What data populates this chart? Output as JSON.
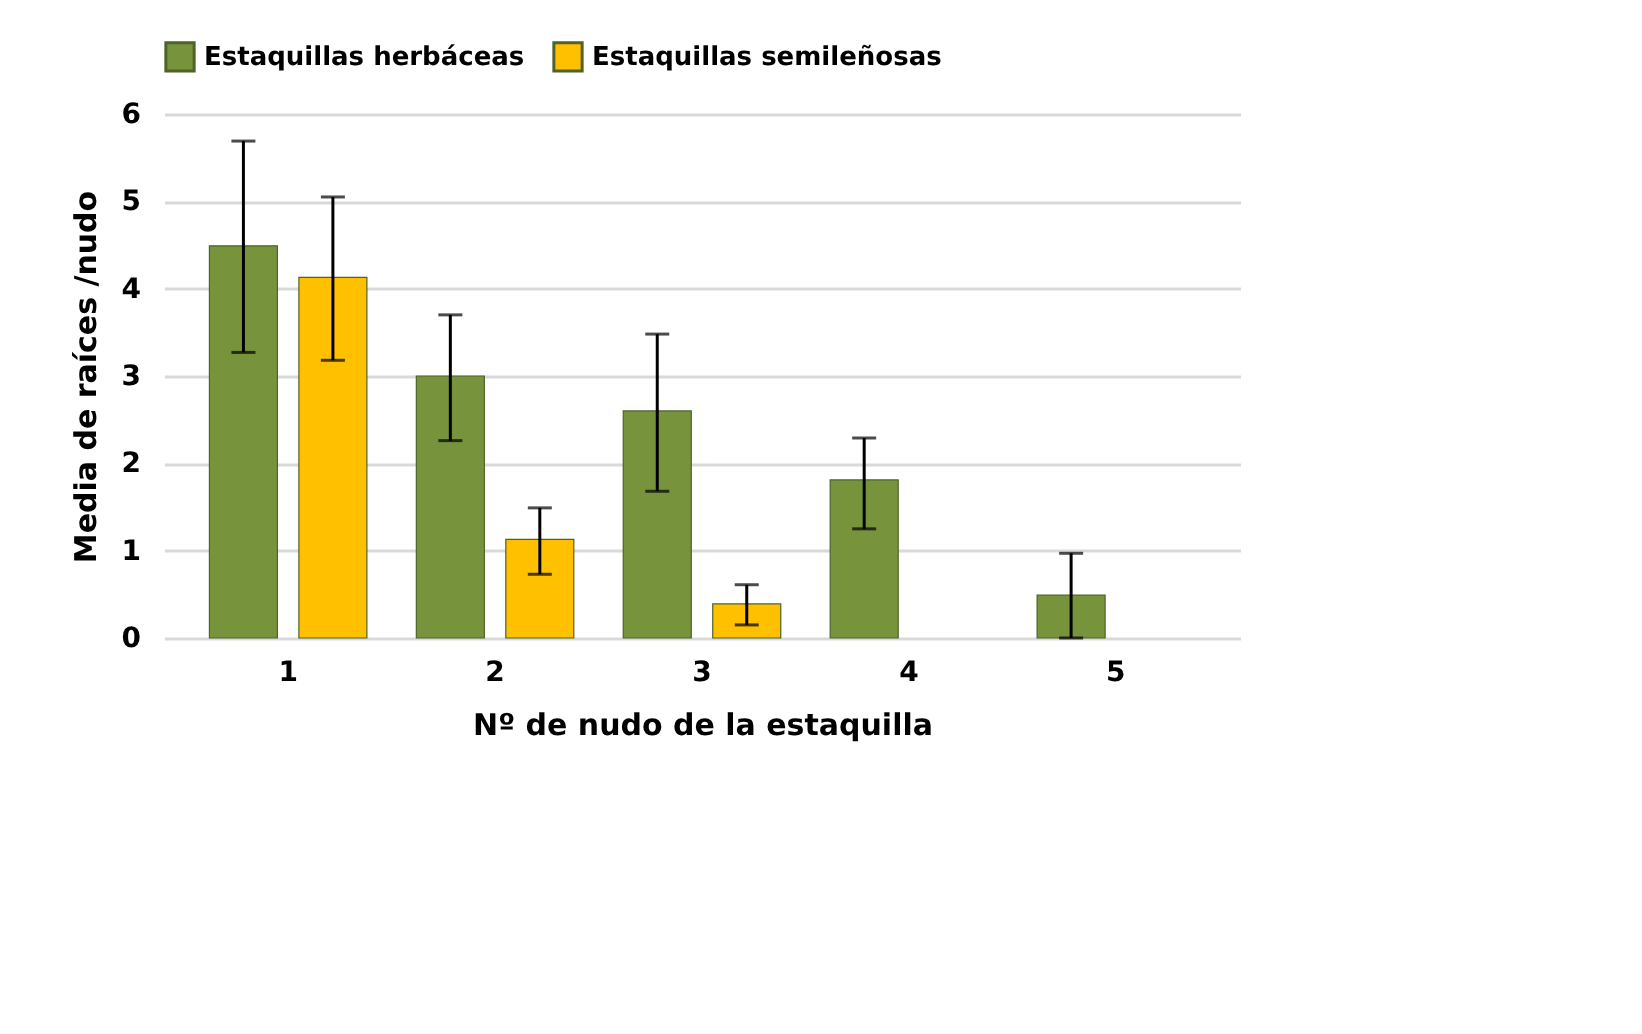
{
  "chart_data": {
    "type": "bar",
    "xlabel": "Nº de nudo de la estaquilla",
    "ylabel": "Media de raíces /nudo",
    "categories": [
      "1",
      "2",
      "3",
      "4",
      "5"
    ],
    "series": [
      {
        "name": "Estaquillas herbáceas",
        "color": "#77933c",
        "values": [
          4.49,
          3.0,
          2.6,
          1.81,
          0.49
        ],
        "errors": [
          [
            3.27,
            5.69
          ],
          [
            2.26,
            3.7
          ],
          [
            1.68,
            3.48
          ],
          [
            1.25,
            2.29
          ],
          [
            0,
            0.97
          ]
        ]
      },
      {
        "name": "Estaquillas semileñosas",
        "color": "#ffc000",
        "values": [
          4.13,
          1.13,
          0.39,
          null,
          null
        ],
        "errors": [
          [
            3.18,
            5.05
          ],
          [
            0.73,
            1.49
          ],
          [
            0.15,
            0.61
          ],
          null,
          null
        ]
      }
    ],
    "ylim": [
      0,
      6
    ],
    "yticks": [
      0,
      1,
      2,
      3,
      4,
      5,
      6
    ],
    "grid": "y",
    "legend": "top"
  }
}
